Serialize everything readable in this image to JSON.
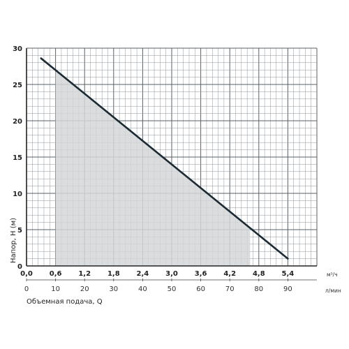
{
  "chart_data": {
    "type": "line",
    "xlabel": "Объемная подача, Q",
    "ylabel": "Напор, H (м)",
    "x_units": {
      "primary": "м³/ч",
      "secondary": "л/мин"
    },
    "x_ticks_m3h": [
      "0,0",
      "0,6",
      "1,2",
      "1,8",
      "2,4",
      "3,0",
      "3,6",
      "4,2",
      "4,8",
      "5,4"
    ],
    "x_ticks_lmin": [
      "0",
      "10",
      "20",
      "30",
      "40",
      "50",
      "60",
      "70",
      "80",
      "90"
    ],
    "y_ticks": [
      "0",
      "5",
      "10",
      "15",
      "20",
      "25",
      "30"
    ],
    "xlim_lmin": [
      0,
      100
    ],
    "ylim": [
      0,
      30
    ],
    "grid": true,
    "series": [
      {
        "x_lmin": [
          5,
          90
        ],
        "y": [
          28.6,
          1.0
        ],
        "color": "#1c2b33"
      }
    ],
    "working_range": {
      "x_lmin": [
        10,
        77
      ],
      "color": "#d4d6d8"
    }
  }
}
